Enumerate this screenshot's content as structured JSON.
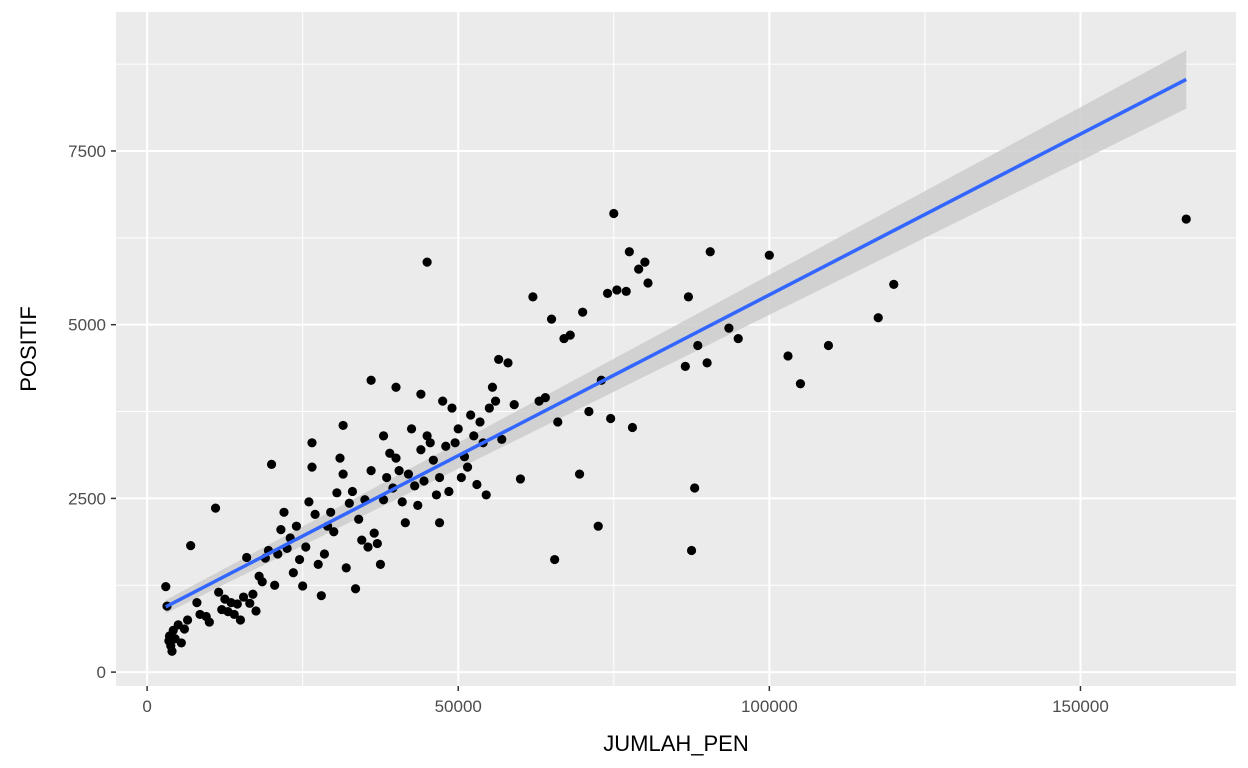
{
  "chart_data": {
    "type": "scatter",
    "xlabel": "JUMLAH_PEN",
    "ylabel": "POSITIF",
    "xlim": [
      -5000,
      175000
    ],
    "ylim": [
      -200,
      9500
    ],
    "x_ticks": [
      0,
      50000,
      100000,
      150000
    ],
    "y_ticks": [
      0,
      2500,
      5000,
      7500
    ],
    "x_tick_labels": [
      "0",
      "50000",
      "100000",
      "150000"
    ],
    "y_tick_labels": [
      "0",
      "2500",
      "5000",
      "7500"
    ],
    "grid": true,
    "legend": "none",
    "colors": {
      "panel_background": "#ebebeb",
      "grid": "#ffffff",
      "points": "#000000",
      "fit_line": "#3366ff",
      "confidence_band": "#cccccc"
    },
    "regression": {
      "method": "linear",
      "x_range": [
        3000,
        167000
      ],
      "y_at_start": 940,
      "y_at_end": 8530,
      "band_halfwidth_start": 95,
      "band_halfwidth_end": 420
    },
    "points": [
      [
        3000,
        1230
      ],
      [
        3200,
        950
      ],
      [
        3500,
        450
      ],
      [
        3600,
        520
      ],
      [
        3800,
        380
      ],
      [
        4000,
        300
      ],
      [
        4200,
        600
      ],
      [
        4500,
        480
      ],
      [
        5000,
        680
      ],
      [
        5500,
        420
      ],
      [
        6000,
        620
      ],
      [
        6500,
        750
      ],
      [
        7000,
        1820
      ],
      [
        8000,
        1000
      ],
      [
        8500,
        830
      ],
      [
        9500,
        800
      ],
      [
        10000,
        720
      ],
      [
        11000,
        2360
      ],
      [
        11500,
        1150
      ],
      [
        12000,
        900
      ],
      [
        12500,
        1050
      ],
      [
        13000,
        870
      ],
      [
        13500,
        1000
      ],
      [
        14000,
        830
      ],
      [
        14500,
        980
      ],
      [
        15000,
        750
      ],
      [
        15500,
        1080
      ],
      [
        16000,
        1650
      ],
      [
        16500,
        990
      ],
      [
        17000,
        1120
      ],
      [
        17500,
        880
      ],
      [
        18000,
        1380
      ],
      [
        18500,
        1300
      ],
      [
        19000,
        1640
      ],
      [
        19500,
        1750
      ],
      [
        20000,
        2990
      ],
      [
        20500,
        1250
      ],
      [
        21000,
        1700
      ],
      [
        21500,
        2050
      ],
      [
        22000,
        2300
      ],
      [
        22500,
        1780
      ],
      [
        23000,
        1930
      ],
      [
        23500,
        1430
      ],
      [
        24000,
        2100
      ],
      [
        24500,
        1620
      ],
      [
        25000,
        1240
      ],
      [
        25500,
        1800
      ],
      [
        26000,
        2450
      ],
      [
        26500,
        2950
      ],
      [
        27000,
        2270
      ],
      [
        27500,
        1550
      ],
      [
        28000,
        1100
      ],
      [
        28500,
        1700
      ],
      [
        29000,
        2100
      ],
      [
        29500,
        2300
      ],
      [
        30000,
        2020
      ],
      [
        30500,
        2580
      ],
      [
        31000,
        3080
      ],
      [
        31500,
        2850
      ],
      [
        32000,
        1500
      ],
      [
        32500,
        2430
      ],
      [
        33000,
        2600
      ],
      [
        33500,
        1200
      ],
      [
        34000,
        2200
      ],
      [
        34500,
        1900
      ],
      [
        35000,
        2480
      ],
      [
        35500,
        1800
      ],
      [
        36000,
        2900
      ],
      [
        36500,
        2000
      ],
      [
        37000,
        1850
      ],
      [
        37500,
        1550
      ],
      [
        38000,
        2480
      ],
      [
        38500,
        2800
      ],
      [
        39000,
        3150
      ],
      [
        39500,
        2650
      ],
      [
        40000,
        3080
      ],
      [
        40500,
        2900
      ],
      [
        41000,
        2450
      ],
      [
        41500,
        2150
      ],
      [
        42000,
        2850
      ],
      [
        42500,
        3500
      ],
      [
        43000,
        2680
      ],
      [
        43500,
        2400
      ],
      [
        44000,
        3200
      ],
      [
        44500,
        2750
      ],
      [
        45000,
        3400
      ],
      [
        45500,
        3300
      ],
      [
        46000,
        3050
      ],
      [
        46500,
        2550
      ],
      [
        47000,
        2800
      ],
      [
        47500,
        3900
      ],
      [
        48000,
        3250
      ],
      [
        48500,
        2600
      ],
      [
        49000,
        3800
      ],
      [
        49500,
        3300
      ],
      [
        50000,
        3500
      ],
      [
        50500,
        2800
      ],
      [
        51000,
        3100
      ],
      [
        51500,
        2950
      ],
      [
        52000,
        3700
      ],
      [
        52500,
        3400
      ],
      [
        53000,
        2700
      ],
      [
        53500,
        3600
      ],
      [
        54000,
        3300
      ],
      [
        54500,
        2550
      ],
      [
        55000,
        3800
      ],
      [
        55500,
        4100
      ],
      [
        56000,
        3900
      ],
      [
        57000,
        3350
      ],
      [
        58000,
        4450
      ],
      [
        59000,
        3850
      ],
      [
        60000,
        2780
      ],
      [
        62000,
        5400
      ],
      [
        63000,
        3900
      ],
      [
        64000,
        3950
      ],
      [
        65000,
        5080
      ],
      [
        65500,
        1620
      ],
      [
        66000,
        3600
      ],
      [
        67000,
        4800
      ],
      [
        68000,
        4850
      ],
      [
        69500,
        2850
      ],
      [
        70000,
        5180
      ],
      [
        71000,
        3750
      ],
      [
        72500,
        2100
      ],
      [
        73000,
        4200
      ],
      [
        74000,
        5450
      ],
      [
        74500,
        3650
      ],
      [
        75000,
        6600
      ],
      [
        75500,
        5500
      ],
      [
        77000,
        5480
      ],
      [
        77500,
        6050
      ],
      [
        78000,
        3520
      ],
      [
        79000,
        5800
      ],
      [
        80000,
        5900
      ],
      [
        80500,
        5600
      ],
      [
        86500,
        4400
      ],
      [
        87000,
        5400
      ],
      [
        87500,
        1750
      ],
      [
        88000,
        2650
      ],
      [
        88500,
        4700
      ],
      [
        90000,
        4450
      ],
      [
        90500,
        6050
      ],
      [
        93500,
        4950
      ],
      [
        95000,
        4800
      ],
      [
        100000,
        6000
      ],
      [
        103000,
        4550
      ],
      [
        105000,
        4150
      ],
      [
        109500,
        4700
      ],
      [
        117500,
        5100
      ],
      [
        120000,
        5580
      ],
      [
        167000,
        6520
      ],
      [
        45000,
        5900
      ],
      [
        36000,
        4200
      ],
      [
        40000,
        4100
      ],
      [
        44000,
        4000
      ],
      [
        31500,
        3550
      ],
      [
        26500,
        3300
      ],
      [
        38000,
        3400
      ],
      [
        56500,
        4500
      ],
      [
        47000,
        2150
      ]
    ]
  }
}
